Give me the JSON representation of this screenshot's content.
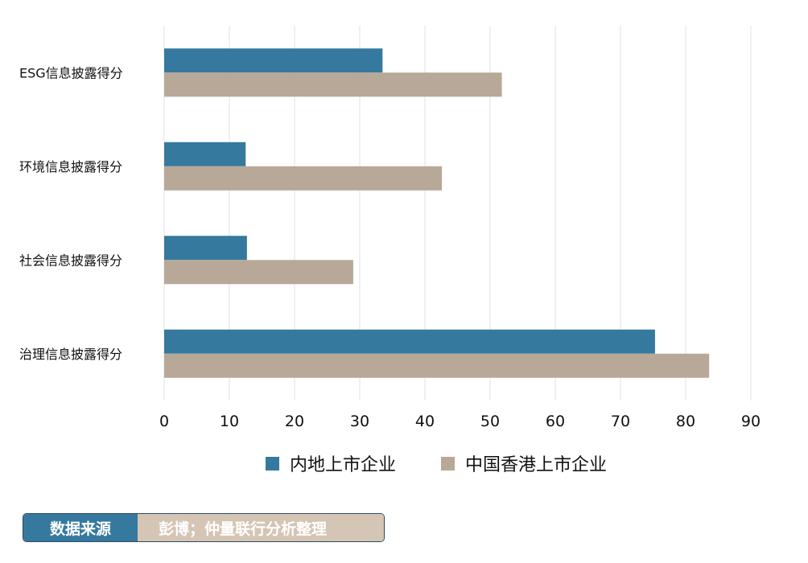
{
  "chart_data": {
    "type": "bar",
    "orientation": "horizontal",
    "categories": [
      "ESG信息披露得分",
      "环境信息披露得分",
      "社会信息披露得分",
      "治理信息披露得分"
    ],
    "series": [
      {
        "name": "内地上市企业",
        "values": [
          33.5,
          12.5,
          12.7,
          75.3
        ]
      },
      {
        "name": "中国香港上市企业",
        "values": [
          51.8,
          42.6,
          29.0,
          83.6
        ]
      }
    ],
    "xlim": [
      0,
      90
    ],
    "xticks": [
      0,
      10,
      20,
      30,
      40,
      50,
      60,
      70,
      80,
      90
    ],
    "grid": true,
    "legend_position": "bottom",
    "colors": [
      "#36799e",
      "#b8a898"
    ]
  },
  "source": {
    "label": "数据来源",
    "value": "彭博；仲量联行分析整理"
  }
}
